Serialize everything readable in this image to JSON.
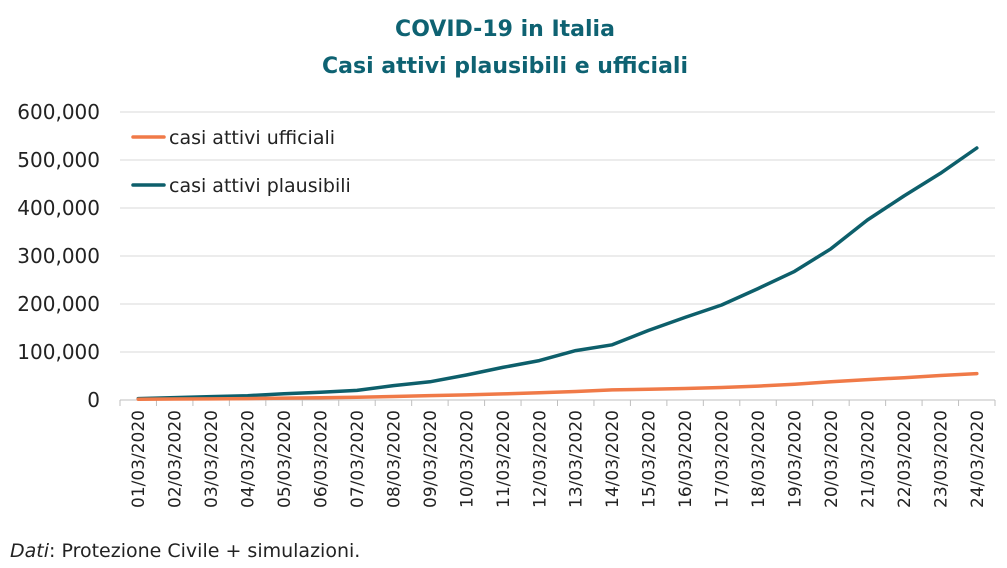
{
  "colors": {
    "title": "#0e6272",
    "ufficiali": "#f07a48",
    "plausibili": "#0d5f6b",
    "grid": "#d9d9d9",
    "text": "#222222"
  },
  "chart_data": {
    "type": "line",
    "title": [
      "COVID-19 in Italia",
      "Casi attivi plausibili e ufficiali"
    ],
    "xlabel": "",
    "ylabel": "",
    "ylim": [
      0,
      600000
    ],
    "yticks": [
      0,
      100000,
      200000,
      300000,
      400000,
      500000,
      600000
    ],
    "ytick_labels": [
      "0",
      "100,000",
      "200,000",
      "300,000",
      "400,000",
      "500,000",
      "600,000"
    ],
    "grid": true,
    "legend_position": "top-left",
    "categories": [
      "01/03/2020",
      "02/03/2020",
      "03/03/2020",
      "04/03/2020",
      "05/03/2020",
      "06/03/2020",
      "07/03/2020",
      "08/03/2020",
      "09/03/2020",
      "10/03/2020",
      "11/03/2020",
      "12/03/2020",
      "13/03/2020",
      "14/03/2020",
      "15/03/2020",
      "16/03/2020",
      "17/03/2020",
      "18/03/2020",
      "19/03/2020",
      "20/03/2020",
      "21/03/2020",
      "22/03/2020",
      "23/03/2020",
      "24/03/2020"
    ],
    "series": [
      {
        "name": "casi attivi ufficiali",
        "color": "#f07a48",
        "values": [
          1600,
          2000,
          2300,
          3000,
          3900,
          4700,
          5800,
          7300,
          9200,
          10600,
          12800,
          14900,
          17700,
          21000,
          22500,
          24000,
          26000,
          29000,
          33000,
          38000,
          42500,
          46500,
          51000,
          55000
        ]
      },
      {
        "name": "casi attivi plausibili",
        "color": "#0d5f6b",
        "values": [
          3000,
          5000,
          7000,
          9000,
          13000,
          16000,
          20000,
          30000,
          38000,
          52000,
          68000,
          82000,
          103000,
          115000,
          145000,
          172000,
          198000,
          232000,
          268000,
          315000,
          375000,
          425000,
          472000,
          525000
        ]
      }
    ]
  },
  "footnote": {
    "italic": "Dati",
    "rest": ": Protezione Civile + simulazioni."
  }
}
